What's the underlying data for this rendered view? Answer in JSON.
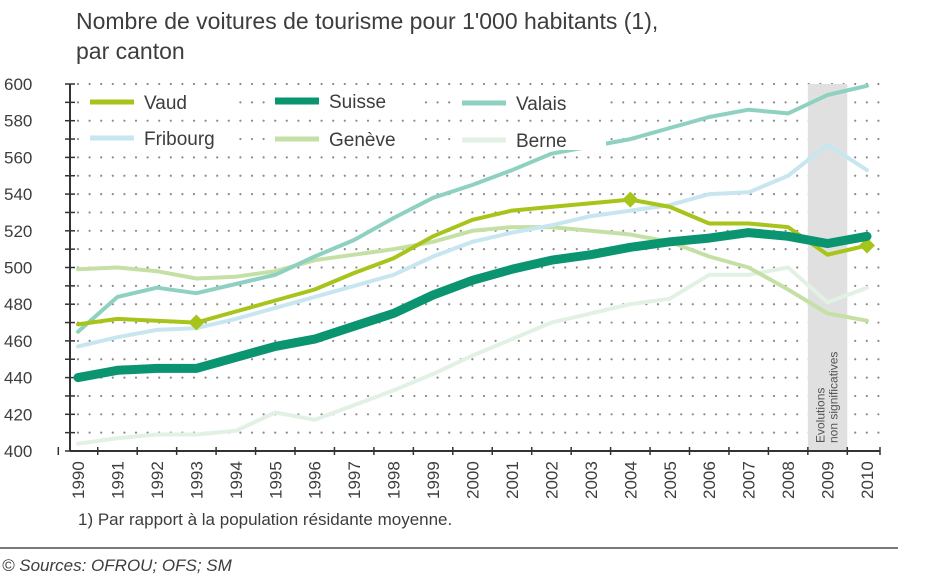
{
  "chart_data": {
    "type": "line",
    "title": "Nombre de voitures de tourisme pour 1'000 habitants (1), par canton",
    "title_lines": [
      "Nombre de voitures de tourisme pour 1'000 habitants (1),",
      "par canton"
    ],
    "xlabel": "",
    "ylabel": "",
    "x": [
      1990,
      1991,
      1992,
      1993,
      1994,
      1995,
      1996,
      1997,
      1998,
      1999,
      2000,
      2001,
      2002,
      2003,
      2004,
      2005,
      2006,
      2007,
      2008,
      2009,
      2010
    ],
    "x_tick_labels": [
      "1990",
      "1991",
      "1992",
      "1993",
      "1994",
      "1995",
      "1996",
      "1997",
      "1998",
      "1999",
      "2000",
      "2001",
      "2002",
      "2003",
      "2004",
      "2005",
      "2006",
      "2007",
      "2008",
      "2009",
      "2010"
    ],
    "ylim": [
      400,
      600
    ],
    "y_ticks": [
      400,
      420,
      440,
      460,
      480,
      500,
      520,
      540,
      560,
      580,
      600
    ],
    "y_tick_labels": [
      "400",
      "420",
      "440",
      "460",
      "480",
      "500",
      "520",
      "540",
      "560",
      "580",
      "600"
    ],
    "grid": "dotted",
    "legend_position": "top-left",
    "series": [
      {
        "name": "Vaud",
        "color": "#a6c41a",
        "width": "medium",
        "markers_at": [
          1993,
          2004,
          2010
        ],
        "values": [
          469,
          472,
          471,
          470,
          476,
          482,
          488,
          497,
          505,
          517,
          526,
          531,
          533,
          535,
          537,
          533,
          524,
          524,
          522,
          507,
          512
        ]
      },
      {
        "name": "Suisse",
        "color": "#0a9470",
        "width": "thick",
        "markers_at": [],
        "values": [
          440,
          444,
          445,
          445,
          451,
          457,
          461,
          468,
          475,
          485,
          493,
          499,
          504,
          507,
          511,
          514,
          516,
          519,
          517,
          513,
          517
        ]
      },
      {
        "name": "Valais",
        "color": "#8fd1c0",
        "width": "medium",
        "markers_at": [],
        "values": [
          465,
          484,
          489,
          486,
          491,
          496,
          506,
          515,
          527,
          538,
          545,
          553,
          562,
          566,
          570,
          576,
          582,
          586,
          584,
          594,
          599
        ]
      },
      {
        "name": "Fribourg",
        "color": "#c8e6ef",
        "width": "medium",
        "markers_at": [],
        "values": [
          457,
          462,
          466,
          467,
          472,
          478,
          484,
          490,
          496,
          506,
          514,
          519,
          523,
          528,
          531,
          534,
          540,
          541,
          550,
          567,
          553
        ]
      },
      {
        "name": "Genève",
        "color": "#c5e0a5",
        "width": "medium",
        "markers_at": [],
        "values": [
          499,
          500,
          498,
          494,
          495,
          498,
          504,
          507,
          510,
          514,
          520,
          522,
          522,
          520,
          518,
          514,
          506,
          500,
          488,
          475,
          471
        ]
      },
      {
        "name": "Berne",
        "color": "#e2f1e4",
        "width": "medium",
        "markers_at": [],
        "values": [
          404,
          407,
          409,
          409,
          411,
          421,
          417,
          425,
          433,
          442,
          452,
          461,
          470,
          475,
          480,
          483,
          496,
          496,
          500,
          481,
          489
        ]
      }
    ],
    "annotations": [
      {
        "type": "shaded_band",
        "x_range": [
          2008.5,
          2009.5
        ],
        "color": "#e0e0e0",
        "label_lines": [
          "Evolutions",
          "non significatives"
        ]
      }
    ],
    "footnote": "1) Par rapport à la population résidante moyenne.",
    "source": "© Sources: OFROU; OFS; SM"
  }
}
